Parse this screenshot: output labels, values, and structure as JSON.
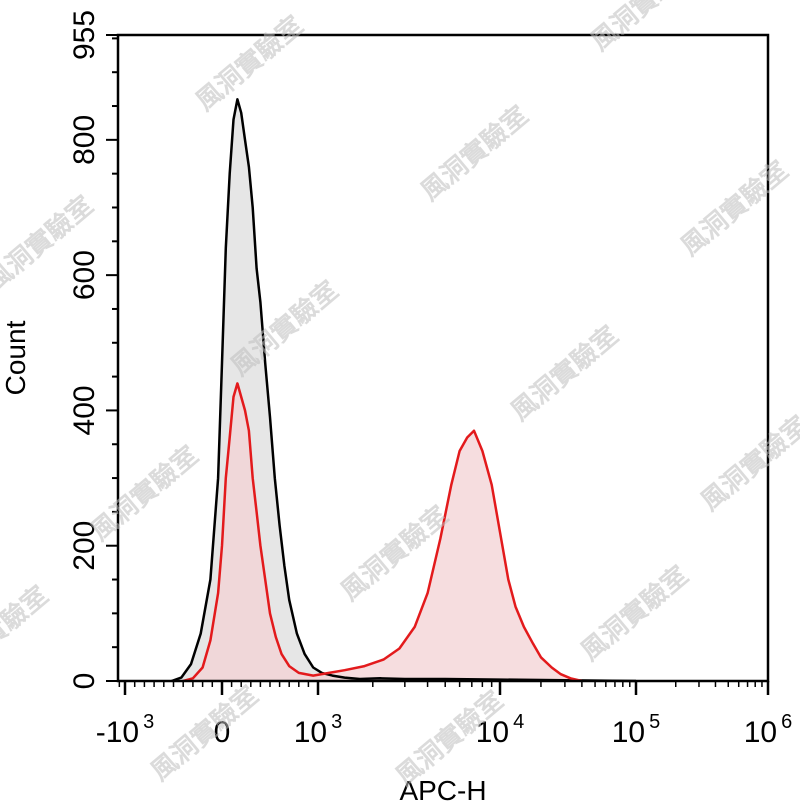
{
  "chart_data": {
    "type": "histogram",
    "xlabel": "APC-H",
    "ylabel": "Count",
    "xscale": "biexponential",
    "xlim": [
      -2500,
      1000000
    ],
    "ylim": [
      0,
      955
    ],
    "y_ticks": [
      {
        "value": 0,
        "label": "0"
      },
      {
        "value": 200,
        "label": "200"
      },
      {
        "value": 400,
        "label": "400"
      },
      {
        "value": 600,
        "label": "600"
      },
      {
        "value": 800,
        "label": "800"
      },
      {
        "value": 955,
        "label": "955"
      }
    ],
    "x_ticks": [
      {
        "value": -1000,
        "base": "-10",
        "exp": "3"
      },
      {
        "value": 0,
        "base": "0",
        "exp": ""
      },
      {
        "value": 1000,
        "base": "10",
        "exp": "3"
      },
      {
        "value": 10000,
        "base": "10",
        "exp": "4"
      },
      {
        "value": 100000,
        "base": "10",
        "exp": "5"
      },
      {
        "value": 1000000,
        "base": "10",
        "exp": "6"
      }
    ],
    "series": [
      {
        "line_color": "#000000",
        "fill_color": "#e6e6e6",
        "x": [
          -520,
          -420,
          -320,
          -220,
          -120,
          -40,
          0,
          40,
          80,
          120,
          160,
          200,
          240,
          280,
          320,
          360,
          400,
          450,
          500,
          550,
          600,
          650,
          700,
          780,
          860,
          950,
          1050,
          1200,
          1400,
          1700,
          2200,
          3000,
          5000,
          10000,
          30000,
          100000
        ],
        "y": [
          0,
          5,
          25,
          70,
          150,
          300,
          470,
          640,
          750,
          830,
          860,
          840,
          800,
          760,
          700,
          610,
          560,
          470,
          390,
          300,
          230,
          170,
          120,
          70,
          40,
          20,
          12,
          8,
          5,
          3,
          4,
          3,
          3,
          2,
          1,
          0
        ]
      },
      {
        "line_color": "#e31a1c",
        "fill_color": "#f3d2d4",
        "x": [
          -400,
          -300,
          -200,
          -120,
          -40,
          0,
          40,
          80,
          120,
          160,
          200,
          240,
          280,
          320,
          360,
          400,
          450,
          500,
          560,
          620,
          700,
          800,
          950,
          1150,
          1400,
          1800,
          2300,
          2800,
          3400,
          4000,
          4700,
          5400,
          6000,
          6600,
          7200,
          8000,
          9000,
          10000,
          11500,
          13000,
          15000,
          17500,
          20000,
          24000,
          28000,
          33000,
          40000
        ],
        "y": [
          0,
          4,
          20,
          60,
          130,
          200,
          300,
          360,
          420,
          440,
          420,
          400,
          370,
          300,
          250,
          200,
          150,
          100,
          65,
          40,
          22,
          12,
          8,
          12,
          16,
          22,
          32,
          48,
          80,
          130,
          210,
          290,
          340,
          360,
          370,
          340,
          290,
          220,
          150,
          110,
          80,
          55,
          35,
          20,
          10,
          4,
          0
        ]
      }
    ],
    "watermark_text": "風洞實驗室"
  }
}
